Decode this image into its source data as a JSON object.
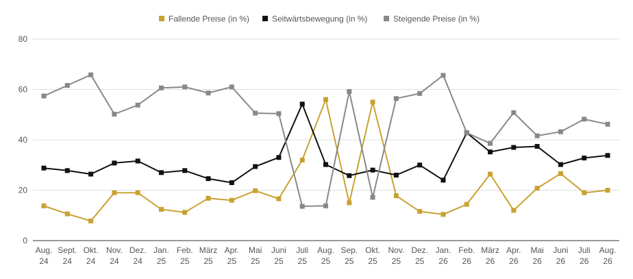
{
  "chart_data": {
    "type": "line",
    "title": "",
    "xlabel": "",
    "ylabel": "",
    "ylim": [
      0,
      80
    ],
    "yticks": [
      0,
      20,
      40,
      60,
      80
    ],
    "grid": "horizontal",
    "legend_position": "top-center",
    "categories": [
      [
        "Aug.",
        "24"
      ],
      [
        "Sept.",
        "24"
      ],
      [
        "Okt.",
        "24"
      ],
      [
        "Nov.",
        "24"
      ],
      [
        "Dez.",
        "24"
      ],
      [
        "Jan.",
        "25"
      ],
      [
        "Feb.",
        "25"
      ],
      [
        "März",
        "25"
      ],
      [
        "Apr.",
        "25"
      ],
      [
        "Mai",
        "25"
      ],
      [
        "Juni",
        "25"
      ],
      [
        "Juli",
        "25"
      ],
      [
        "Aug.",
        "25"
      ],
      [
        "Sep.",
        "25"
      ],
      [
        "Okt.",
        "25"
      ],
      [
        "Nov.",
        "25"
      ],
      [
        "Dez.",
        "25"
      ],
      [
        "Jan.",
        "26"
      ],
      [
        "Feb.",
        "26"
      ],
      [
        "März",
        "26"
      ],
      [
        "Apr.",
        "26"
      ],
      [
        "Mai",
        "26"
      ],
      [
        "Juni",
        "26"
      ],
      [
        "Juli",
        "26"
      ],
      [
        "Aug.",
        "26"
      ]
    ],
    "series": [
      {
        "name": "Fallende Preise (in %)",
        "color": "#c9a132",
        "values": [
          13.8,
          10.6,
          7.8,
          19.0,
          19.0,
          12.4,
          11.2,
          16.8,
          16.0,
          19.8,
          16.6,
          32.0,
          56.0,
          15.0,
          55.0,
          17.8,
          11.6,
          10.4,
          14.4,
          26.4,
          12.0,
          20.8,
          26.6,
          19.0,
          20.0
        ]
      },
      {
        "name": "Seitwärtsbewegung (in %)",
        "color": "#111111",
        "values": [
          28.8,
          27.8,
          26.4,
          30.8,
          31.6,
          27.0,
          27.8,
          24.6,
          23.0,
          29.4,
          33.0,
          54.2,
          30.2,
          25.8,
          28.0,
          26.0,
          30.0,
          24.0,
          42.8,
          35.2,
          37.0,
          37.4,
          30.2,
          32.8,
          33.8
        ]
      },
      {
        "name": "Steigende Preise (in %)",
        "color": "#888888",
        "values": [
          57.4,
          61.6,
          65.8,
          50.2,
          53.8,
          60.6,
          61.0,
          58.6,
          61.0,
          50.6,
          50.4,
          13.6,
          13.8,
          59.2,
          17.2,
          56.4,
          58.4,
          65.6,
          42.8,
          38.6,
          50.8,
          41.6,
          43.2,
          48.2,
          46.2
        ]
      }
    ]
  }
}
